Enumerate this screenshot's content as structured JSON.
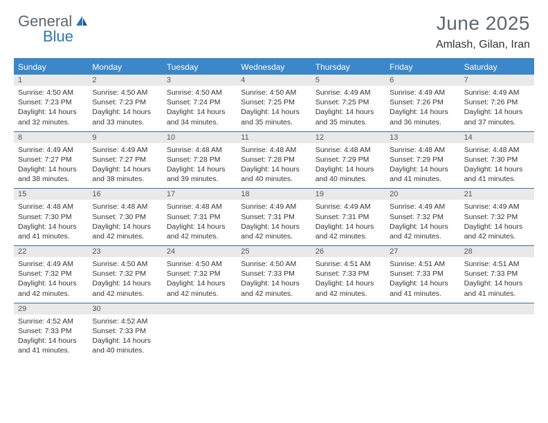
{
  "logo": {
    "general": "General",
    "blue": "Blue"
  },
  "header": {
    "title": "June 2025",
    "location": "Amlash, Gilan, Iran"
  },
  "colors": {
    "header_bar": "#3b87c8",
    "header_text": "#ffffff",
    "day_num_bg": "#e9e9e9",
    "week_border": "#2e6ea5",
    "logo_gray": "#5c6670",
    "logo_blue": "#2877b7"
  },
  "day_names": [
    "Sunday",
    "Monday",
    "Tuesday",
    "Wednesday",
    "Thursday",
    "Friday",
    "Saturday"
  ],
  "weeks": [
    [
      {
        "n": "1",
        "sr": "4:50 AM",
        "ss": "7:23 PM",
        "dl": "14 hours and 32 minutes."
      },
      {
        "n": "2",
        "sr": "4:50 AM",
        "ss": "7:23 PM",
        "dl": "14 hours and 33 minutes."
      },
      {
        "n": "3",
        "sr": "4:50 AM",
        "ss": "7:24 PM",
        "dl": "14 hours and 34 minutes."
      },
      {
        "n": "4",
        "sr": "4:50 AM",
        "ss": "7:25 PM",
        "dl": "14 hours and 35 minutes."
      },
      {
        "n": "5",
        "sr": "4:49 AM",
        "ss": "7:25 PM",
        "dl": "14 hours and 35 minutes."
      },
      {
        "n": "6",
        "sr": "4:49 AM",
        "ss": "7:26 PM",
        "dl": "14 hours and 36 minutes."
      },
      {
        "n": "7",
        "sr": "4:49 AM",
        "ss": "7:26 PM",
        "dl": "14 hours and 37 minutes."
      }
    ],
    [
      {
        "n": "8",
        "sr": "4:49 AM",
        "ss": "7:27 PM",
        "dl": "14 hours and 38 minutes."
      },
      {
        "n": "9",
        "sr": "4:49 AM",
        "ss": "7:27 PM",
        "dl": "14 hours and 38 minutes."
      },
      {
        "n": "10",
        "sr": "4:48 AM",
        "ss": "7:28 PM",
        "dl": "14 hours and 39 minutes."
      },
      {
        "n": "11",
        "sr": "4:48 AM",
        "ss": "7:28 PM",
        "dl": "14 hours and 40 minutes."
      },
      {
        "n": "12",
        "sr": "4:48 AM",
        "ss": "7:29 PM",
        "dl": "14 hours and 40 minutes."
      },
      {
        "n": "13",
        "sr": "4:48 AM",
        "ss": "7:29 PM",
        "dl": "14 hours and 41 minutes."
      },
      {
        "n": "14",
        "sr": "4:48 AM",
        "ss": "7:30 PM",
        "dl": "14 hours and 41 minutes."
      }
    ],
    [
      {
        "n": "15",
        "sr": "4:48 AM",
        "ss": "7:30 PM",
        "dl": "14 hours and 41 minutes."
      },
      {
        "n": "16",
        "sr": "4:48 AM",
        "ss": "7:30 PM",
        "dl": "14 hours and 42 minutes."
      },
      {
        "n": "17",
        "sr": "4:48 AM",
        "ss": "7:31 PM",
        "dl": "14 hours and 42 minutes."
      },
      {
        "n": "18",
        "sr": "4:49 AM",
        "ss": "7:31 PM",
        "dl": "14 hours and 42 minutes."
      },
      {
        "n": "19",
        "sr": "4:49 AM",
        "ss": "7:31 PM",
        "dl": "14 hours and 42 minutes."
      },
      {
        "n": "20",
        "sr": "4:49 AM",
        "ss": "7:32 PM",
        "dl": "14 hours and 42 minutes."
      },
      {
        "n": "21",
        "sr": "4:49 AM",
        "ss": "7:32 PM",
        "dl": "14 hours and 42 minutes."
      }
    ],
    [
      {
        "n": "22",
        "sr": "4:49 AM",
        "ss": "7:32 PM",
        "dl": "14 hours and 42 minutes."
      },
      {
        "n": "23",
        "sr": "4:50 AM",
        "ss": "7:32 PM",
        "dl": "14 hours and 42 minutes."
      },
      {
        "n": "24",
        "sr": "4:50 AM",
        "ss": "7:32 PM",
        "dl": "14 hours and 42 minutes."
      },
      {
        "n": "25",
        "sr": "4:50 AM",
        "ss": "7:33 PM",
        "dl": "14 hours and 42 minutes."
      },
      {
        "n": "26",
        "sr": "4:51 AM",
        "ss": "7:33 PM",
        "dl": "14 hours and 42 minutes."
      },
      {
        "n": "27",
        "sr": "4:51 AM",
        "ss": "7:33 PM",
        "dl": "14 hours and 41 minutes."
      },
      {
        "n": "28",
        "sr": "4:51 AM",
        "ss": "7:33 PM",
        "dl": "14 hours and 41 minutes."
      }
    ],
    [
      {
        "n": "29",
        "sr": "4:52 AM",
        "ss": "7:33 PM",
        "dl": "14 hours and 41 minutes."
      },
      {
        "n": "30",
        "sr": "4:52 AM",
        "ss": "7:33 PM",
        "dl": "14 hours and 40 minutes."
      },
      null,
      null,
      null,
      null,
      null
    ]
  ],
  "labels": {
    "sunrise": "Sunrise: ",
    "sunset": "Sunset: ",
    "daylight": "Daylight: "
  }
}
